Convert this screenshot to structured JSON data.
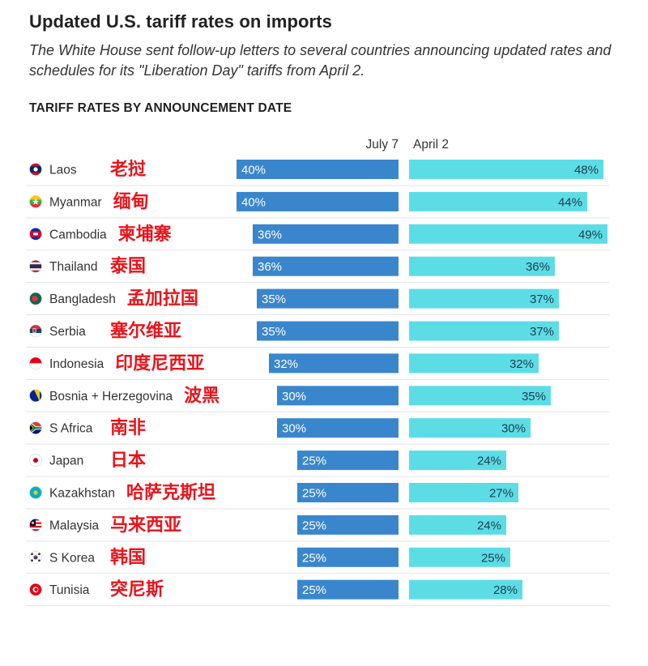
{
  "header": {
    "title": "Updated U.S. tariff rates on imports",
    "subtitle": "The White House sent follow-up letters to several countries announcing updated rates and schedules for its \"Liberation Day\" tariffs from April 2.",
    "section_title": "TARIFF RATES BY ANNOUNCEMENT DATE"
  },
  "colors": {
    "july_bar": "#3a86cc",
    "april_bar": "#5cdde6",
    "annotation": "#e8141b",
    "divider": "#e3e3e3"
  },
  "chart_data": {
    "type": "bar",
    "orientation": "horizontal",
    "title": "TARIFF RATES BY ANNOUNCEMENT DATE",
    "categories": [
      "Laos",
      "Myanmar",
      "Cambodia",
      "Thailand",
      "Bangladesh",
      "Serbia",
      "Indonesia",
      "Bosnia + Herzegovina",
      "S Africa",
      "Japan",
      "Kazakhstan",
      "Malaysia",
      "S Korea",
      "Tunisia"
    ],
    "annotations_zh": [
      "老挝",
      "缅甸",
      "柬埔寨",
      "泰国",
      "孟加拉国",
      "塞尔维亚",
      "印度尼西亚",
      "波黑",
      "南非",
      "日本",
      "哈萨克斯坦",
      "马来西亚",
      "韩国",
      "突尼斯"
    ],
    "series": [
      {
        "name": "July 7",
        "values": [
          40,
          40,
          36,
          36,
          35,
          35,
          32,
          30,
          30,
          25,
          25,
          25,
          25,
          25
        ],
        "color": "#3a86cc"
      },
      {
        "name": "April 2",
        "values": [
          48,
          44,
          49,
          36,
          37,
          37,
          32,
          35,
          30,
          24,
          27,
          24,
          25,
          28
        ],
        "color": "#5cdde6"
      }
    ],
    "value_suffix": "%",
    "flags": [
      "flag-laos-icon",
      "flag-myanmar-icon",
      "flag-cambodia-icon",
      "flag-thailand-icon",
      "flag-bangladesh-icon",
      "flag-serbia-icon",
      "flag-indonesia-icon",
      "flag-bosnia-icon",
      "flag-south-africa-icon",
      "flag-japan-icon",
      "flag-kazakhstan-icon",
      "flag-malaysia-icon",
      "flag-south-korea-icon",
      "flag-tunisia-icon"
    ]
  }
}
